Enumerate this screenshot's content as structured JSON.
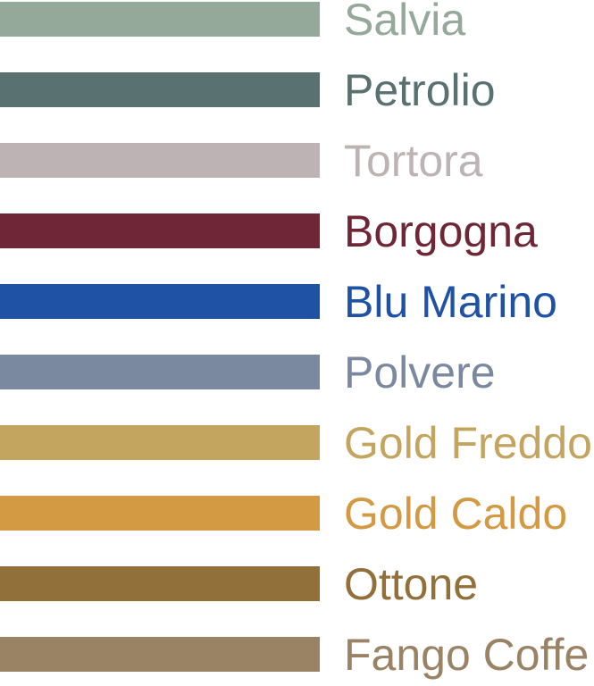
{
  "palette": {
    "background": "#FFFFFF",
    "swatches": [
      {
        "label": "Salvia",
        "color": "#94A99A"
      },
      {
        "label": "Petrolio",
        "color": "#5A7171"
      },
      {
        "label": "Tortora",
        "color": "#BDB3B4"
      },
      {
        "label": "Borgogna",
        "color": "#6F2636"
      },
      {
        "label": "Blu Marino",
        "color": "#1F52A4"
      },
      {
        "label": "Polvere",
        "color": "#7A89A0"
      },
      {
        "label": "Gold Freddo",
        "color": "#C3A560"
      },
      {
        "label": "Gold Caldo",
        "color": "#D39A43"
      },
      {
        "label": "Ottone",
        "color": "#91703A"
      },
      {
        "label": "Fango Coffe",
        "color": "#9A8264"
      }
    ]
  }
}
